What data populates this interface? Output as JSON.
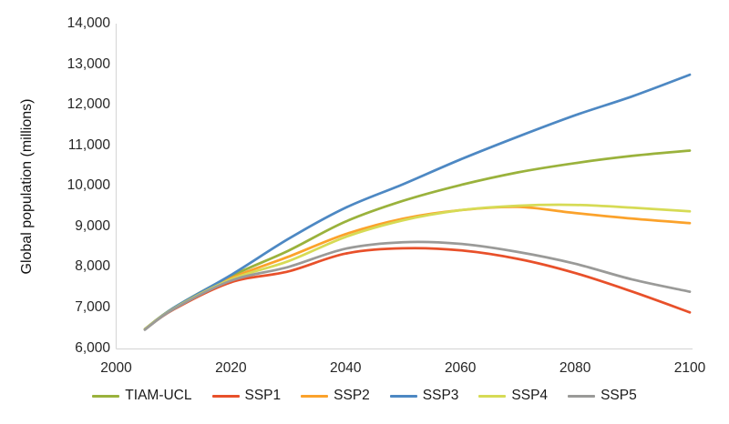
{
  "chart_data": {
    "type": "line",
    "title": "",
    "xlabel": "",
    "ylabel": "Global population (millions)",
    "grid": false,
    "legend_position": "bottom",
    "xlim": [
      2000,
      2100
    ],
    "ylim": [
      6000,
      14000
    ],
    "xticks": {
      "values": [
        2000,
        2020,
        2040,
        2060,
        2080,
        2100
      ],
      "labels": [
        "2000",
        "2020",
        "2040",
        "2060",
        "2080",
        "2100"
      ]
    },
    "yticks": {
      "values": [
        6000,
        7000,
        8000,
        9000,
        10000,
        11000,
        12000,
        13000,
        14000
      ],
      "labels": [
        "6,000",
        "7,000",
        "8,000",
        "9,000",
        "10,000",
        "11,000",
        "12,000",
        "13,000",
        "14,000"
      ]
    },
    "x": [
      2005,
      2010,
      2020,
      2030,
      2040,
      2050,
      2060,
      2070,
      2080,
      2090,
      2100
    ],
    "series": [
      {
        "name": "TIAM-UCL",
        "color": "#9AB23C",
        "values": [
          6470,
          6990,
          7770,
          8400,
          9120,
          9630,
          10020,
          10330,
          10560,
          10740,
          10870
        ]
      },
      {
        "name": "SSP1",
        "color": "#E8502A",
        "values": [
          6460,
          6950,
          7620,
          7890,
          8330,
          8460,
          8410,
          8200,
          7850,
          7390,
          6880
        ]
      },
      {
        "name": "SSP2",
        "color": "#FBA22B",
        "values": [
          6460,
          6980,
          7720,
          8250,
          8810,
          9190,
          9400,
          9480,
          9330,
          9190,
          9080
        ]
      },
      {
        "name": "SSP3",
        "color": "#4D88C3",
        "values": [
          6460,
          6990,
          7800,
          8690,
          9460,
          10040,
          10650,
          11210,
          11740,
          12210,
          12740
        ]
      },
      {
        "name": "SSP4",
        "color": "#D6DB55",
        "values": [
          6460,
          6970,
          7690,
          8140,
          8740,
          9150,
          9400,
          9510,
          9530,
          9460,
          9370
        ]
      },
      {
        "name": "SSP5",
        "color": "#9A9A98",
        "values": [
          6450,
          6960,
          7660,
          8000,
          8450,
          8610,
          8570,
          8370,
          8080,
          7690,
          7390
        ]
      }
    ],
    "axis_color": "#D9D9D9",
    "line_width": 2.75
  }
}
